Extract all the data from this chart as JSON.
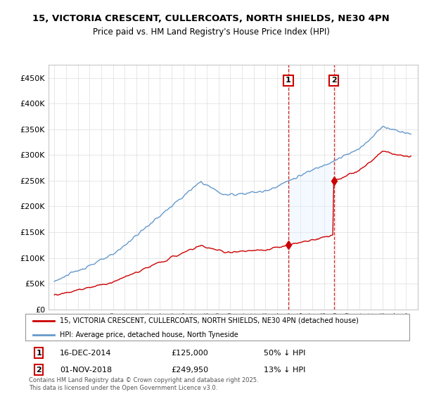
{
  "title_line1": "15, VICTORIA CRESCENT, CULLERCOATS, NORTH SHIELDS, NE30 4PN",
  "title_line2": "Price paid vs. HM Land Registry's House Price Index (HPI)",
  "ylim": [
    0,
    475000
  ],
  "yticks": [
    0,
    50000,
    100000,
    150000,
    200000,
    250000,
    300000,
    350000,
    400000,
    450000
  ],
  "ytick_labels": [
    "£0",
    "£50K",
    "£100K",
    "£150K",
    "£200K",
    "£250K",
    "£300K",
    "£350K",
    "£400K",
    "£450K"
  ],
  "sale1_date_num": 2014.96,
  "sale1_price": 125000,
  "sale1_date_str": "16-DEC-2014",
  "sale1_pct": "50% ↓ HPI",
  "sale2_date_num": 2018.85,
  "sale2_price": 249950,
  "sale2_date_str": "01-NOV-2018",
  "sale2_pct": "13% ↓ HPI",
  "house_color": "#cc0000",
  "hpi_color": "#6699cc",
  "shade_color": "#ddeeff",
  "legend1": "15, VICTORIA CRESCENT, CULLERCOATS, NORTH SHIELDS, NE30 4PN (detached house)",
  "legend2": "HPI: Average price, detached house, North Tyneside",
  "footnote": "Contains HM Land Registry data © Crown copyright and database right 2025.\nThis data is licensed under the Open Government Licence v3.0.",
  "background_color": "#ffffff",
  "plot_bg": "#ffffff",
  "grid_color": "#dddddd",
  "xlim_left": 1994.5,
  "xlim_right": 2026.0
}
